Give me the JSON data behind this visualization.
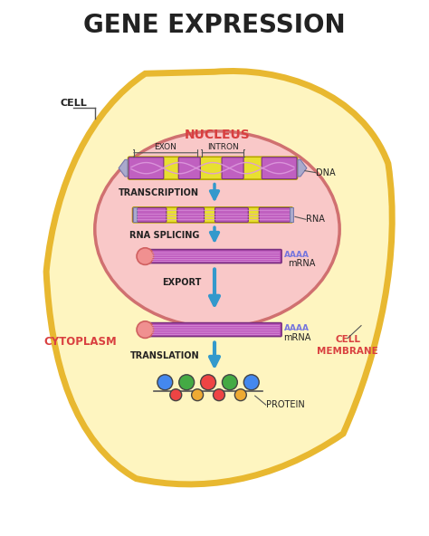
{
  "title": "GENE EXPRESSION",
  "title_fontsize": 20,
  "title_fontweight": "bold",
  "bg_color": "#ffffff",
  "cell_fill_color": "#fef5c0",
  "cell_edge_color": "#e8b830",
  "cell_edge_width": 5,
  "nucleus_fill_color": "#f9c8c8",
  "nucleus_edge_color": "#d07070",
  "nucleus_edge_width": 2.5,
  "nucleus_label": "NUCLEUS",
  "nucleus_label_color": "#d94040",
  "nucleus_label_fontsize": 10,
  "cell_label": "CELL",
  "cytoplasm_label": "CYTOPLASM",
  "cell_membrane_label": "CELL\nMEMBRANE",
  "region_label_color": "#d94040",
  "region_label_fontsize": 8.5,
  "arrow_color": "#3399cc",
  "arrow_lw": 2.5,
  "arrow_mutation_scale": 16,
  "dna_purple": "#c060c0",
  "dna_purple_dark": "#7a3080",
  "dna_yellow": "#e8e030",
  "dna_yellow_dark": "#b8a800",
  "rna_purple": "#c060c0",
  "mrna_purple": "#bb55bb",
  "mrna_cap_color": "#f09090",
  "mrna_cap_edge": "#d06060",
  "text_color": "#222222",
  "step_fontsize": 7,
  "step_fontweight": "bold",
  "label_fontsize": 7,
  "aaaa_color": "#7777dd",
  "protein_colors_top": [
    "#4488ee",
    "#44aa44",
    "#ee4444",
    "#44aa44",
    "#4488ee"
  ],
  "protein_colors_bot": [
    "#ee4444",
    "#eeaa33",
    "#ee4444",
    "#eeaa33"
  ],
  "dna_line_color": "#dd99dd",
  "connector_color": "#555555"
}
